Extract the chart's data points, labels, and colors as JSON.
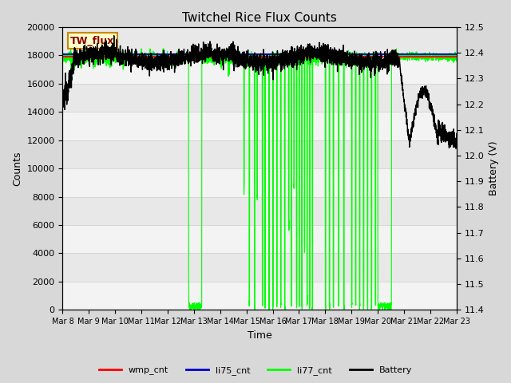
{
  "title": "Twitchel Rice Flux Counts",
  "xlabel": "Time",
  "ylabel_left": "Counts",
  "ylabel_right": "Battery (V)",
  "ylim_left": [
    0,
    20000
  ],
  "ylim_right": [
    11.4,
    12.5
  ],
  "yticks_left": [
    0,
    2000,
    4000,
    6000,
    8000,
    10000,
    12000,
    14000,
    16000,
    18000,
    20000
  ],
  "yticks_right": [
    11.4,
    11.5,
    11.6,
    11.7,
    11.8,
    11.9,
    12.0,
    12.1,
    12.2,
    12.3,
    12.4,
    12.5
  ],
  "xtick_labels": [
    "Mar 8",
    "Mar 9",
    "Mar 10",
    "Mar 11",
    "Mar 12",
    "Mar 13",
    "Mar 14",
    "Mar 15",
    "Mar 16",
    "Mar 17",
    "Mar 18",
    "Mar 19",
    "Mar 20",
    "Mar 21",
    "Mar 22",
    "Mar 23"
  ],
  "wmp_cnt_value": 17900,
  "li75_cnt_value": 18050,
  "colors": {
    "wmp_cnt": "#ff0000",
    "li75_cnt": "#0000cc",
    "li77_cnt": "#00ff00",
    "battery": "#000000",
    "fig_bg": "#d8d8d8",
    "plot_bg": "#e8e8e8",
    "grid_light": "#ffffff",
    "label_box_bg": "#ffffcc",
    "label_box_border": "#cc8800"
  },
  "legend_entries": [
    "wmp_cnt",
    "li75_cnt",
    "li77_cnt",
    "Battery"
  ]
}
